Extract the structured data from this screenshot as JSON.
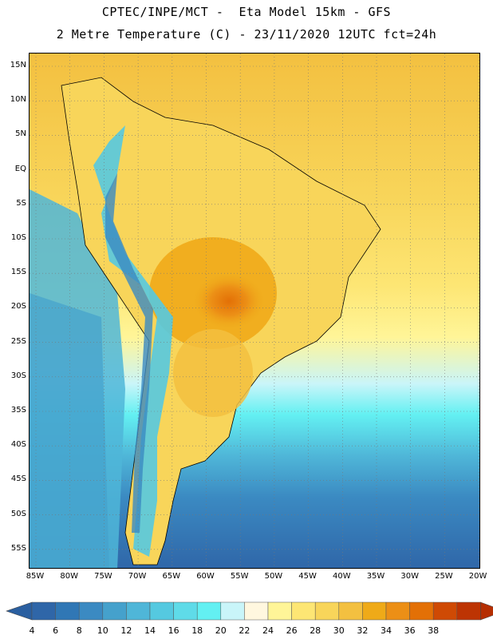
{
  "header": {
    "line1": "CPTEC/INPE/MCT -  Eta Model 15km - GFS",
    "line2": "2 Metre Temperature (C) - 23/11/2020 12UTC fct=24h"
  },
  "lat_ticks": [
    "15N",
    "10N",
    "5N",
    "EQ",
    "5S",
    "10S",
    "15S",
    "20S",
    "25S",
    "30S",
    "35S",
    "40S",
    "45S",
    "50S",
    "55S"
  ],
  "lon_ticks": [
    "85W",
    "80W",
    "75W",
    "70W",
    "65W",
    "60W",
    "55W",
    "50W",
    "45W",
    "40W",
    "35W",
    "30W",
    "25W",
    "20W"
  ],
  "colorbar": {
    "labels": [
      "4",
      "6",
      "8",
      "10",
      "12",
      "14",
      "16",
      "18",
      "20",
      "22",
      "24",
      "26",
      "28",
      "30",
      "32",
      "34",
      "36",
      "38"
    ],
    "colors": [
      "#2f66a8",
      "#3077b5",
      "#3b8ac2",
      "#45a1cc",
      "#4fb6d8",
      "#55c9e0",
      "#5fdbe8",
      "#63f0f2",
      "#c9f5f9",
      "#fff7df",
      "#fff598",
      "#fde674",
      "#f8d55a",
      "#f3c040",
      "#efaa18",
      "#ec8f16",
      "#e37006",
      "#cf4a04",
      "#bd3403"
    ],
    "low_arrow_color": "#2a5fa0",
    "high_arrow_color": "#b52e02"
  }
}
